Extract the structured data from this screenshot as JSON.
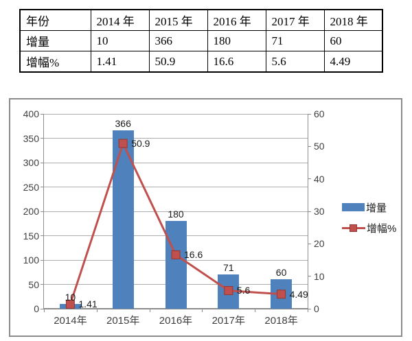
{
  "table": {
    "rows": [
      {
        "cells": [
          "年份",
          "2014 年",
          "2015 年",
          "2016 年",
          "2017 年",
          "2018 年"
        ]
      },
      {
        "cells": [
          "增量",
          "10",
          "366",
          "180",
          "71",
          "60"
        ]
      },
      {
        "cells": [
          "增幅%",
          "1.41",
          "50.9",
          "16.6",
          "5.6",
          "4.49"
        ]
      }
    ]
  },
  "chart_data": {
    "type": "combo",
    "categories": [
      "2014年",
      "2015年",
      "2016年",
      "2017年",
      "2018年"
    ],
    "series": [
      {
        "name": "增量",
        "type": "bar",
        "axis": "left",
        "values": [
          10,
          366,
          180,
          71,
          60
        ],
        "color": "#4F81BD"
      },
      {
        "name": "增幅%",
        "type": "line",
        "axis": "right",
        "values": [
          1.41,
          50.9,
          16.6,
          5.6,
          4.49
        ],
        "color": "#C0504D",
        "marker": "square",
        "marker_border": "#943634"
      }
    ],
    "axes": {
      "left": {
        "min": 0,
        "max": 400,
        "step": 50
      },
      "right": {
        "min": 0,
        "max": 60,
        "step": 10
      }
    },
    "legend": {
      "position": "right"
    },
    "grid": true,
    "data_labels": true,
    "colors": {
      "grid": "#ACACAC",
      "axis": "#8C8C8C",
      "tick_text": "#3F3F3F",
      "label_text": "#1A1A1A"
    }
  }
}
